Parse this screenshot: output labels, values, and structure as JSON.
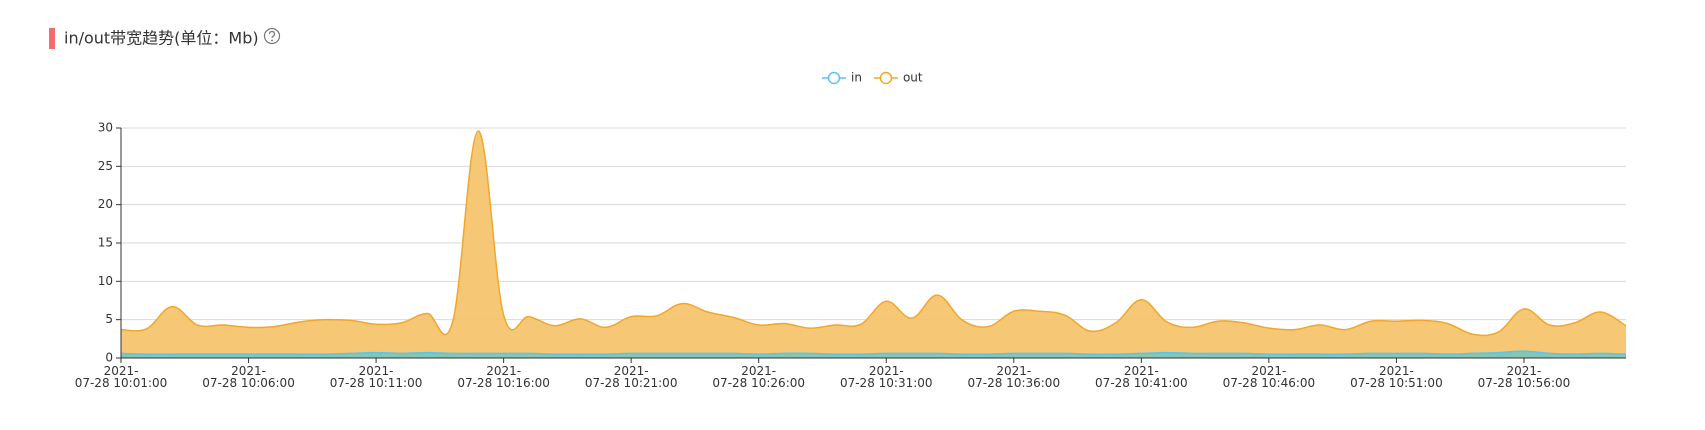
{
  "chart_data": {
    "type": "area",
    "title": "in/out带宽趋势(单位：Mb)",
    "categories": [
      "2021-07-28 10:01:00",
      null,
      null,
      null,
      null,
      "2021-07-28 10:06:00",
      null,
      null,
      null,
      null,
      "2021-07-28 10:11:00",
      null,
      null,
      null,
      null,
      "2021-07-28 10:16:00",
      null,
      null,
      null,
      null,
      "2021-07-28 10:21:00",
      null,
      null,
      null,
      null,
      "2021-07-28 10:26:00",
      null,
      null,
      null,
      null,
      "2021-07-28 10:31:00",
      null,
      null,
      null,
      null,
      "2021-07-28 10:36:00",
      null,
      null,
      null,
      null,
      "2021-07-28 10:41:00",
      null,
      null,
      null,
      null,
      "2021-07-28 10:46:00",
      null,
      null,
      null,
      null,
      "2021-07-28 10:51:00",
      null,
      null,
      null,
      null,
      "2021-07-28 10:56:00",
      null,
      null,
      null,
      null
    ],
    "series": [
      {
        "name": "in",
        "color": "#5bc4ec",
        "fill": "#7fc6b8",
        "values": [
          0.6,
          0.5,
          0.5,
          0.5,
          0.5,
          0.5,
          0.5,
          0.5,
          0.5,
          0.6,
          0.7,
          0.6,
          0.7,
          0.6,
          0.6,
          0.6,
          0.6,
          0.5,
          0.5,
          0.5,
          0.6,
          0.6,
          0.6,
          0.6,
          0.6,
          0.5,
          0.6,
          0.6,
          0.5,
          0.5,
          0.6,
          0.6,
          0.6,
          0.5,
          0.5,
          0.6,
          0.6,
          0.6,
          0.5,
          0.5,
          0.6,
          0.7,
          0.6,
          0.6,
          0.6,
          0.5,
          0.5,
          0.5,
          0.5,
          0.6,
          0.6,
          0.6,
          0.5,
          0.6,
          0.7,
          0.9,
          0.6,
          0.5,
          0.6,
          0.5
        ]
      },
      {
        "name": "out",
        "color": "#f0a72c",
        "fill": "#f6c46e",
        "values": [
          3.7,
          3.8,
          6.7,
          4.3,
          4.3,
          4.0,
          4.1,
          4.7,
          5.0,
          4.9,
          4.4,
          4.6,
          5.8,
          4.7,
          29.6,
          5.6,
          5.4,
          4.2,
          5.1,
          4.0,
          5.4,
          5.5,
          7.1,
          6.0,
          5.3,
          4.3,
          4.5,
          3.9,
          4.3,
          4.4,
          7.4,
          5.2,
          8.2,
          4.9,
          4.1,
          6.1,
          6.1,
          5.6,
          3.5,
          4.6,
          7.6,
          4.7,
          4.0,
          4.8,
          4.6,
          3.9,
          3.7,
          4.3,
          3.7,
          4.8,
          4.8,
          4.9,
          4.5,
          3.1,
          3.4,
          6.4,
          4.3,
          4.6,
          6.0,
          4.2
        ]
      }
    ],
    "ylim": [
      0,
      30
    ],
    "yticks": [
      0,
      5,
      10,
      15,
      20,
      25,
      30
    ],
    "grid": true,
    "legend": "top"
  }
}
